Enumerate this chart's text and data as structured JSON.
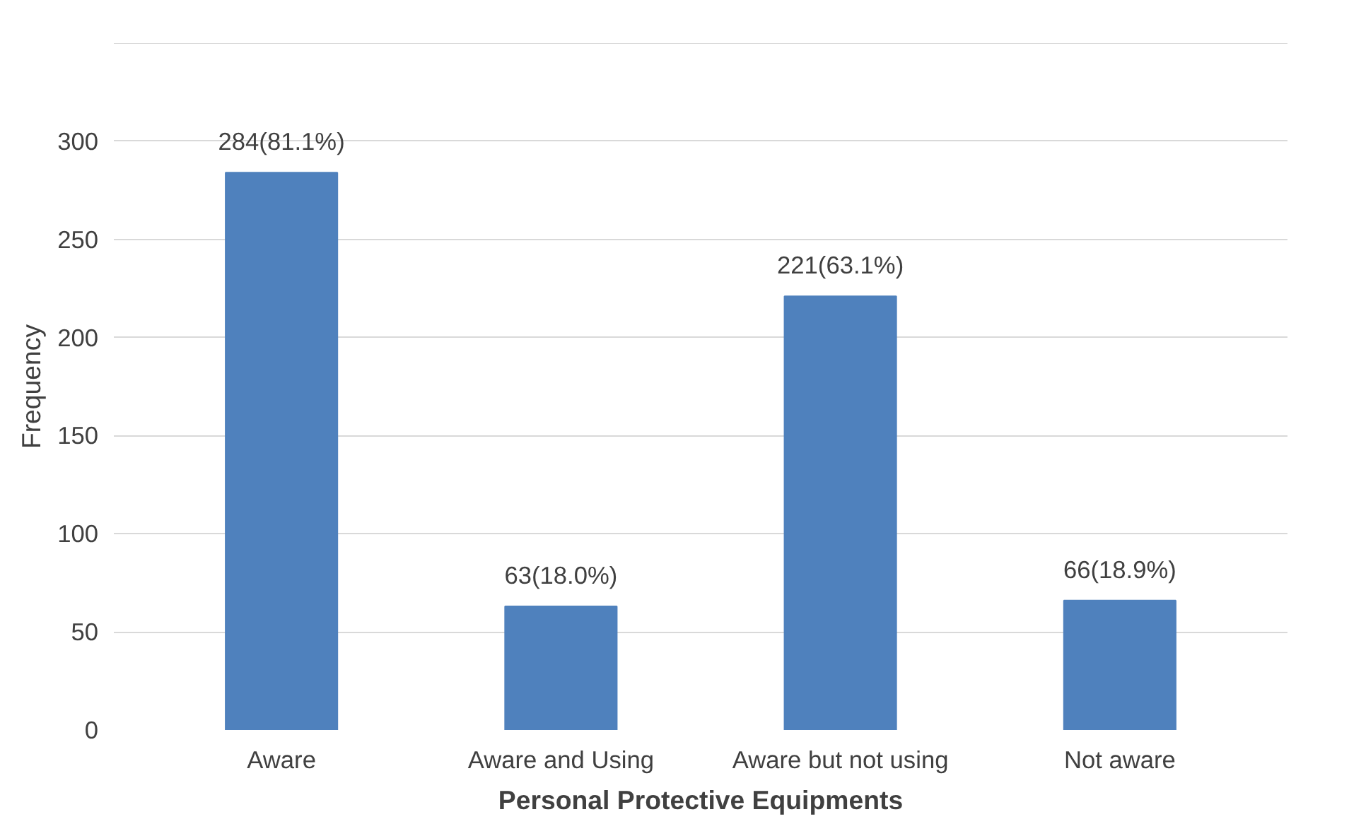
{
  "chart_data": {
    "type": "bar",
    "xlabel": "Personal Protective Equipments",
    "ylabel": "Frequency",
    "categories": [
      "Aware",
      "Aware and Using",
      "Aware but not using",
      "Not aware"
    ],
    "values": [
      284,
      63,
      221,
      66
    ],
    "value_labels": [
      "284(81.1%)",
      "63(18.0%)",
      "221(63.1%)",
      "66(18.9%)"
    ],
    "color": "#4f81bd",
    "ylim": [
      0,
      350
    ],
    "yticks": [
      0,
      50,
      100,
      150,
      200,
      250,
      300,
      {
        "value": 350,
        "label": null
      }
    ],
    "grid": "y"
  }
}
